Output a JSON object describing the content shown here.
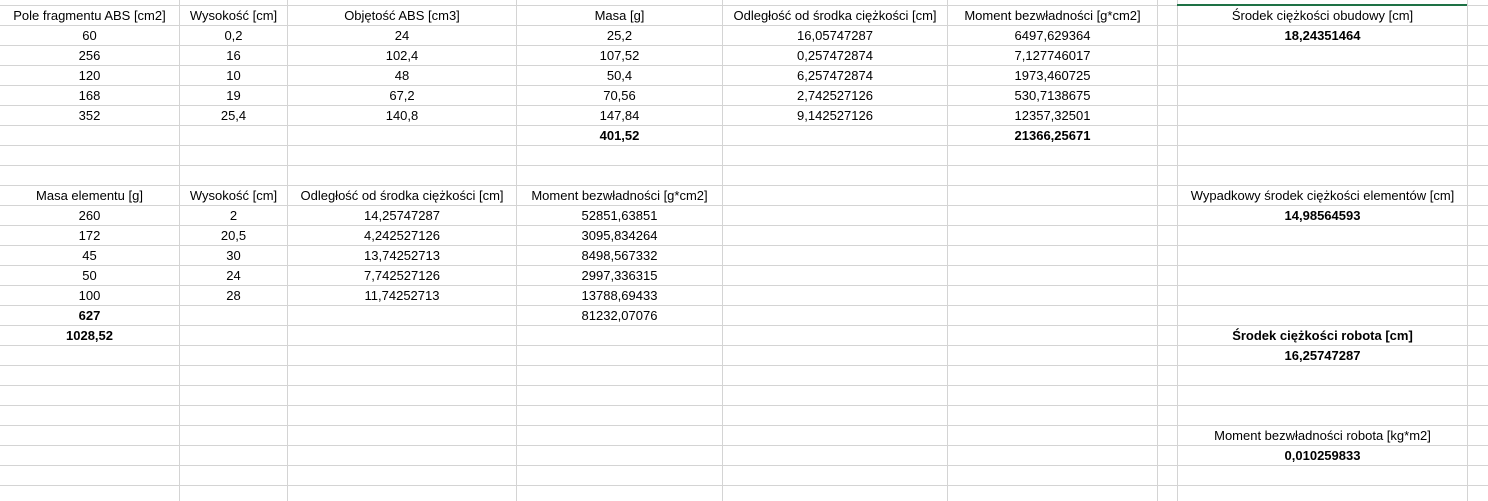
{
  "table1": {
    "headers": [
      "Pole fragmentu ABS [cm2]",
      "Wysokość [cm]",
      "Objętość ABS [cm3]",
      "Masa [g]",
      "Odległość od środka ciężkości [cm]",
      "Moment bezwładności [g*cm2]"
    ],
    "rows": [
      [
        "60",
        "0,2",
        "24",
        "25,2",
        "16,05747287",
        "6497,629364"
      ],
      [
        "256",
        "16",
        "102,4",
        "107,52",
        "0,257472874",
        "7,127746017"
      ],
      [
        "120",
        "10",
        "48",
        "50,4",
        "6,257472874",
        "1973,460725"
      ],
      [
        "168",
        "19",
        "67,2",
        "70,56",
        "2,742527126",
        "530,7138675"
      ],
      [
        "352",
        "25,4",
        "140,8",
        "147,84",
        "9,142527126",
        "12357,32501"
      ]
    ],
    "total_mass": "401,52",
    "total_moment": "21366,25671"
  },
  "table2": {
    "headers": [
      "Masa elementu [g]",
      "Wysokość [cm]",
      "Odległość od środka ciężkości [cm]",
      "Moment bezwładności [g*cm2]"
    ],
    "rows": [
      [
        "260",
        "2",
        "14,25747287",
        "52851,63851"
      ],
      [
        "172",
        "20,5",
        "4,242527126",
        "3095,834264"
      ],
      [
        "45",
        "30",
        "13,74252713",
        "8498,567332"
      ],
      [
        "50",
        "24",
        "7,742527126",
        "2997,336315"
      ],
      [
        "100",
        "28",
        "11,74252713",
        "13788,69433"
      ]
    ],
    "total_mass": "627",
    "total_moment": "81232,07076",
    "grand_total_mass": "1028,52"
  },
  "summary": {
    "housing_cog_label": "Środek ciężkości obudowy [cm]",
    "housing_cog_value": "18,24351464",
    "elements_cog_label": "Wypadkowy środek ciężkości elementów [cm]",
    "elements_cog_value": "14,98564593",
    "robot_cog_label": "Środek ciężkości robota [cm]",
    "robot_cog_value": "16,25747287",
    "robot_moment_label": "Moment bezwładności robota [kg*m2]",
    "robot_moment_value": "0,010259833"
  }
}
